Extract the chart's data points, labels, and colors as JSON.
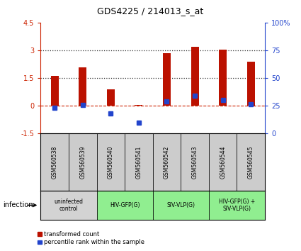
{
  "title": "GDS4225 / 214013_s_at",
  "samples": [
    "GSM560538",
    "GSM560539",
    "GSM560540",
    "GSM560541",
    "GSM560542",
    "GSM560543",
    "GSM560544",
    "GSM560545"
  ],
  "red_values": [
    1.62,
    2.05,
    0.88,
    0.04,
    2.85,
    3.18,
    3.02,
    2.38
  ],
  "blue_values": [
    -0.13,
    0.02,
    -0.42,
    -0.92,
    0.22,
    0.52,
    0.28,
    0.06
  ],
  "ylim_left": [
    -1.5,
    4.5
  ],
  "ylim_right": [
    0,
    100
  ],
  "left_yticks": [
    -1.5,
    0,
    1.5,
    3.0,
    4.5
  ],
  "right_yticks": [
    0,
    25,
    50,
    75,
    100
  ],
  "groups": [
    {
      "label": "uninfected\ncontrol",
      "start": 0,
      "end": 2,
      "color": "#d3d3d3"
    },
    {
      "label": "HIV-GFP(G)",
      "start": 2,
      "end": 4,
      "color": "#90EE90"
    },
    {
      "label": "SIV-VLP(G)",
      "start": 4,
      "end": 6,
      "color": "#90EE90"
    },
    {
      "label": "HIV-GFP(G) +\nSIV-VLP(G)",
      "start": 6,
      "end": 8,
      "color": "#90EE90"
    }
  ],
  "bar_width": 0.28,
  "red_color": "#bb1100",
  "blue_color": "#2244cc",
  "left_tick_color": "#cc2200",
  "right_tick_color": "#2244cc",
  "dotted_color": "#333333",
  "zero_dashed_color": "#cc2200",
  "sample_box_color": "#cccccc",
  "legend_red_label": "transformed count",
  "legend_blue_label": "percentile rank within the sample",
  "infection_label": "infection"
}
